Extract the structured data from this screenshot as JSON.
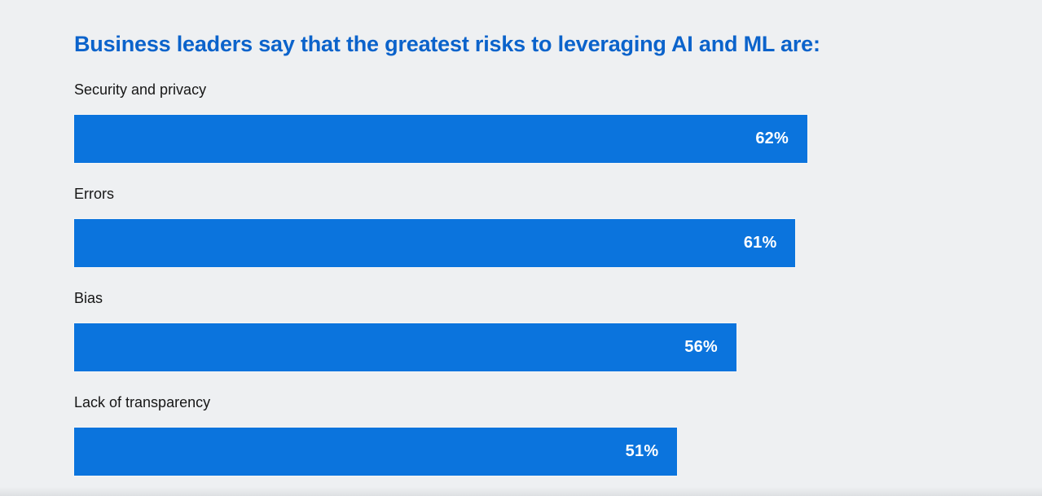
{
  "page": {
    "background_color": "#eef0f2"
  },
  "header": {
    "title": "Business leaders say that the greatest risks to leveraging AI and ML are:",
    "title_color": "#0b63cb"
  },
  "chart_data": {
    "type": "bar",
    "orientation": "horizontal",
    "title": "Business leaders say that the greatest risks to leveraging AI and ML are:",
    "categories": [
      "Security and privacy",
      "Errors",
      "Bias",
      "Lack of transparency"
    ],
    "values": [
      62,
      61,
      56,
      51
    ],
    "value_labels": [
      "62%",
      "61%",
      "56%",
      "51%"
    ],
    "unit": "%",
    "xlim": [
      0,
      62
    ],
    "bar_color": "#0b74dd",
    "value_label_color": "#ffffff",
    "category_label_color": "#161616",
    "value_label_position": "inside-right",
    "grid": false,
    "legend": false,
    "axes_visible": false
  }
}
